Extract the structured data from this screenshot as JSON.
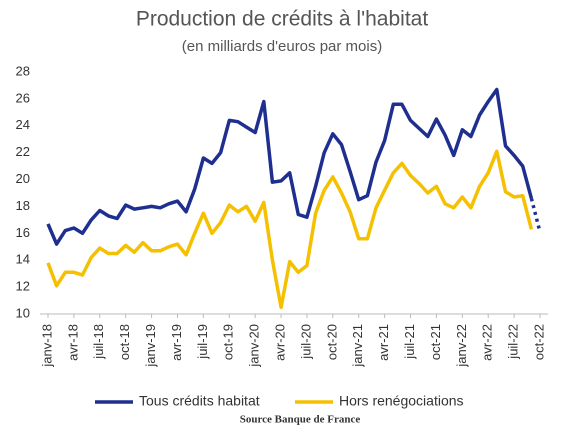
{
  "chart_data": {
    "type": "line",
    "title": "Production de crédits à l'habitat",
    "subtitle": "(en milliards d'euros par mois)",
    "source": "Source Banque de France",
    "categories": [
      "janv-18",
      null,
      null,
      "avr-18",
      null,
      null,
      "juil-18",
      null,
      null,
      "oct-18",
      null,
      null,
      "janv-19",
      null,
      null,
      "avr-19",
      null,
      null,
      "juil-19",
      null,
      null,
      "oct-19",
      null,
      null,
      "janv-20",
      null,
      null,
      "avr-20",
      null,
      null,
      "juil-20",
      null,
      null,
      "oct-20",
      null,
      null,
      "janv-21",
      null,
      null,
      "avr-21",
      null,
      null,
      "juil-21",
      null,
      null,
      "oct-21",
      null,
      null,
      "janv-22",
      null,
      null,
      "avr-22",
      null,
      null,
      "juil-22",
      null,
      null,
      "oct-22"
    ],
    "series": [
      {
        "name": "Tous crédits habitat",
        "color": "#1f2f8f",
        "projected_from": 56,
        "values": [
          16.7,
          15.2,
          16.2,
          16.4,
          16.0,
          17.0,
          17.7,
          17.3,
          17.1,
          18.1,
          17.8,
          17.9,
          18.0,
          17.9,
          18.2,
          18.4,
          17.6,
          19.3,
          21.6,
          21.2,
          22.0,
          24.4,
          24.3,
          23.9,
          23.5,
          25.8,
          19.8,
          19.9,
          20.5,
          17.4,
          17.2,
          19.5,
          22.0,
          23.4,
          22.6,
          20.6,
          18.5,
          18.8,
          21.3,
          22.9,
          25.6,
          25.6,
          24.4,
          23.8,
          23.2,
          24.5,
          23.3,
          21.8,
          23.7,
          23.2,
          24.8,
          25.8,
          26.7,
          22.5,
          21.8,
          21.0,
          18.6,
          16.1
        ]
      },
      {
        "name": "Hors renégociations",
        "color": "#f5c000",
        "values": [
          13.8,
          12.1,
          13.1,
          13.1,
          12.9,
          14.2,
          14.9,
          14.5,
          14.5,
          15.1,
          14.6,
          15.3,
          14.7,
          14.7,
          15.0,
          15.2,
          14.4,
          16.0,
          17.5,
          16.0,
          16.8,
          18.1,
          17.6,
          18.0,
          16.9,
          18.3,
          14.0,
          10.5,
          13.9,
          13.1,
          13.6,
          17.5,
          19.2,
          20.2,
          19.0,
          17.6,
          15.6,
          15.6,
          17.9,
          19.2,
          20.5,
          21.2,
          20.3,
          19.7,
          19.0,
          19.5,
          18.2,
          17.9,
          18.7,
          17.9,
          19.5,
          20.5,
          22.1,
          19.1,
          18.7,
          18.8,
          16.3,
          null
        ]
      }
    ],
    "ylim": [
      10,
      28
    ],
    "yticks": [
      10,
      12,
      14,
      16,
      18,
      20,
      22,
      24,
      26,
      28
    ],
    "grid": false,
    "legend": "bottom"
  }
}
